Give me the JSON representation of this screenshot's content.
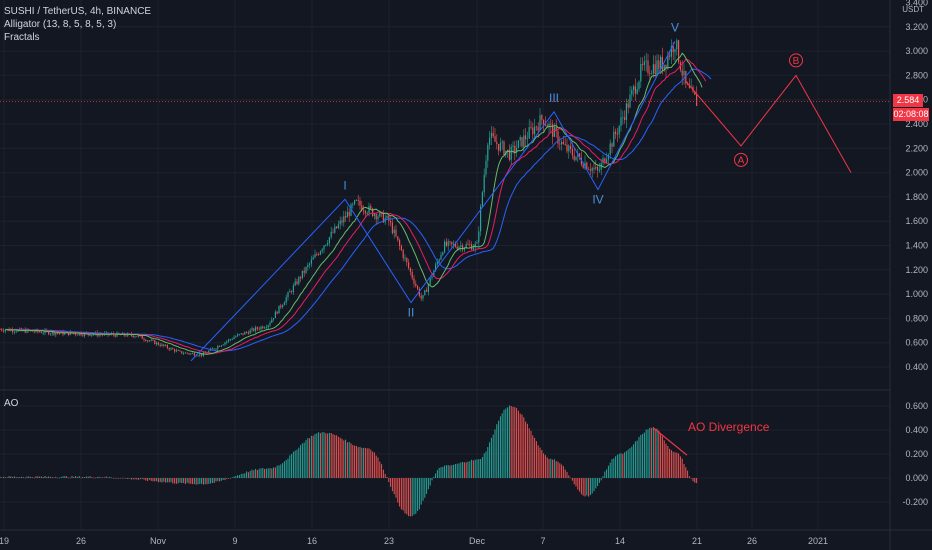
{
  "header": {
    "symbol_line": "SUSHI / TetherUS, 4h, BINANCE",
    "alligator_line": "Alligator (13, 8, 5, 8, 5, 3)",
    "fractals_line": "Fractals"
  },
  "ao_label": "AO",
  "price_axis": {
    "unit": "USDT",
    "current_price": "2.584",
    "countdown": "02:08:08"
  },
  "wave_labels": [
    "I",
    "II",
    "III",
    "IV",
    "V"
  ],
  "projection_labels": [
    "A",
    "B"
  ],
  "annotation": "AO Divergence",
  "colors": {
    "background": "#131722",
    "bull": "#26a69a",
    "bear": "#ef5350",
    "wave_line": "#2962ff",
    "wave_text": "#4c8fdd",
    "projection": "#f23645",
    "jaw": "#2962ff",
    "teeth": "#e91e63",
    "lips": "#66bb6a"
  },
  "chart_data": [
    {
      "type": "line",
      "title": "SUSHI / TetherUS, 4h, BINANCE",
      "x_ticks": [
        "19",
        "26",
        "Nov",
        "9",
        "16",
        "23",
        "Dec",
        "7",
        "14",
        "21",
        "26",
        "2021"
      ],
      "y_ticks": [
        "0.400",
        "0.600",
        "0.800",
        "1.000",
        "1.200",
        "1.400",
        "1.600",
        "1.800",
        "2.000",
        "2.200",
        "2.400",
        "2.600",
        "2.800",
        "3.000",
        "3.200",
        "3.400"
      ],
      "ylim": [
        0.2,
        3.4
      ],
      "y_unit": "USDT",
      "series": [
        {
          "type": "line",
          "x": [
            "Oct 17",
            "Oct 24",
            "Oct 31",
            "Nov 4",
            "Nov 6",
            "Nov 9",
            "Nov 12",
            "Nov 15",
            "Nov 17",
            "Nov 20",
            "Nov 23",
            "Nov 26",
            "Nov 28",
            "Dec 1",
            "Dec 2",
            "Dec 4",
            "Dec 7",
            "Dec 9",
            "Dec 12",
            "Dec 14",
            "Dec 16",
            "Dec 18",
            "Dec 19",
            "Dec 20",
            "Dec 21"
          ],
          "y": [
            0.72,
            0.68,
            0.66,
            0.52,
            0.5,
            0.65,
            0.75,
            1.15,
            1.4,
            1.75,
            1.6,
            0.95,
            1.4,
            1.4,
            2.3,
            2.15,
            2.45,
            2.2,
            2.0,
            2.4,
            2.85,
            2.9,
            3.08,
            2.7,
            2.58
          ]
        }
      ],
      "current_price": 2.584,
      "annotations": [
        {
          "label": "I",
          "x": "Nov 19",
          "y": 1.78
        },
        {
          "label": "II",
          "x": "Nov 25",
          "y": 0.93
        },
        {
          "label": "III",
          "x": "Dec 8",
          "y": 2.5
        },
        {
          "label": "IV",
          "x": "Dec 12",
          "y": 1.86
        },
        {
          "label": "V",
          "x": "Dec 19",
          "y": 3.08
        },
        {
          "label": "A",
          "x": "Dec 25",
          "y": 2.22
        },
        {
          "label": "B",
          "x": "Dec 30",
          "y": 2.8
        }
      ],
      "projection": {
        "x": [
          "Dec 20",
          "Dec 25",
          "Dec 30",
          "Jan 4"
        ],
        "y": [
          2.75,
          2.22,
          2.8,
          2.0
        ]
      }
    },
    {
      "type": "bar",
      "title": "AO",
      "y_ticks": [
        "-0.200",
        "0.000",
        "0.200",
        "0.400",
        "0.600"
      ],
      "ylim": [
        -0.3,
        0.65
      ],
      "annotation": "AO Divergence",
      "x": [
        "Oct 17",
        "Oct 27",
        "Nov 6",
        "Nov 12",
        "Nov 17",
        "Nov 21",
        "Nov 25",
        "Nov 28",
        "Dec 1",
        "Dec 4",
        "Dec 8",
        "Dec 11",
        "Dec 14",
        "Dec 17",
        "Dec 19",
        "Dec 21"
      ],
      "values": [
        0.01,
        0.01,
        -0.05,
        0.08,
        0.38,
        0.25,
        -0.32,
        0.1,
        0.15,
        0.6,
        0.15,
        -0.15,
        0.2,
        0.42,
        0.22,
        -0.05
      ]
    }
  ]
}
